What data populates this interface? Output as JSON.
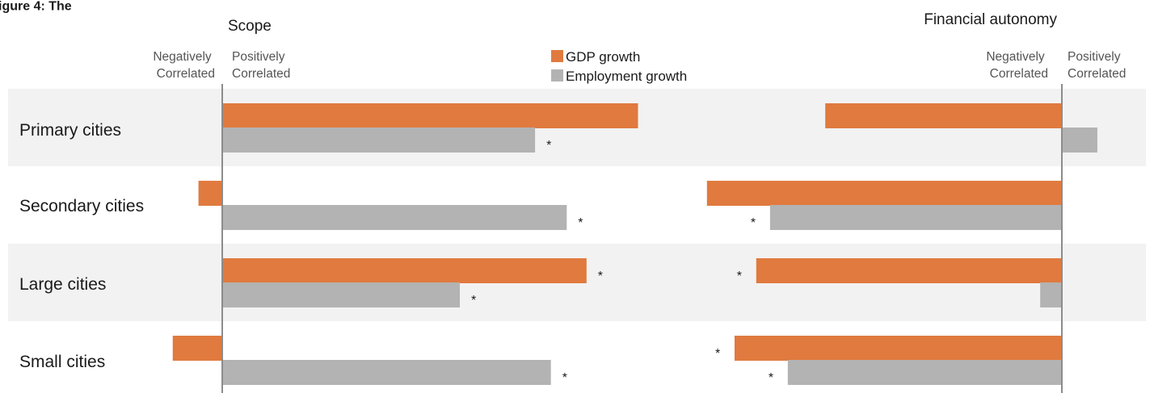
{
  "chart_data": {
    "type": "bar",
    "orientation": "horizontal",
    "title_fragment": "igure 4: The",
    "categories": [
      "Primary cities",
      "Secondary cities",
      "Large cities",
      "Small cities"
    ],
    "legend": {
      "placement": "top-center"
    },
    "series_meta": [
      {
        "name": "GDP growth",
        "color": "#e07a3f"
      },
      {
        "name": "Employment growth",
        "color": "#b3b3b3"
      }
    ],
    "axis_note": "Values shown without a numeric scale; 0 = vertical axis line, units relative",
    "panels": [
      {
        "id": "scope",
        "title": "Scope",
        "negative_label": [
          "Negatively",
          "Correlated"
        ],
        "positive_label": [
          "Positively",
          "Correlated"
        ],
        "xlim": [
          -2.5,
          38
        ],
        "series": [
          {
            "name": "GDP growth",
            "values": [
              21,
              -1.2,
              18.4,
              -2.5
            ],
            "significant": [
              false,
              false,
              true,
              false
            ]
          },
          {
            "name": "Employment growth",
            "values": [
              15.8,
              17.4,
              12,
              16.6
            ],
            "significant": [
              true,
              true,
              true,
              true
            ]
          }
        ]
      },
      {
        "id": "financial-autonomy",
        "title": "Financial autonomy",
        "negative_label": [
          "Negatively",
          "Correlated"
        ],
        "positive_label": [
          "Positively",
          "Correlated"
        ],
        "xlim": [
          -18,
          4
        ],
        "series": [
          {
            "name": "GDP growth",
            "values": [
              -12,
              -18,
              -15.5,
              -16.6
            ],
            "significant": [
              false,
              false,
              true,
              true
            ]
          },
          {
            "name": "Employment growth",
            "values": [
              1.8,
              -14.8,
              -1.1,
              -13.9
            ],
            "significant": [
              false,
              true,
              false,
              true
            ]
          }
        ]
      }
    ]
  }
}
